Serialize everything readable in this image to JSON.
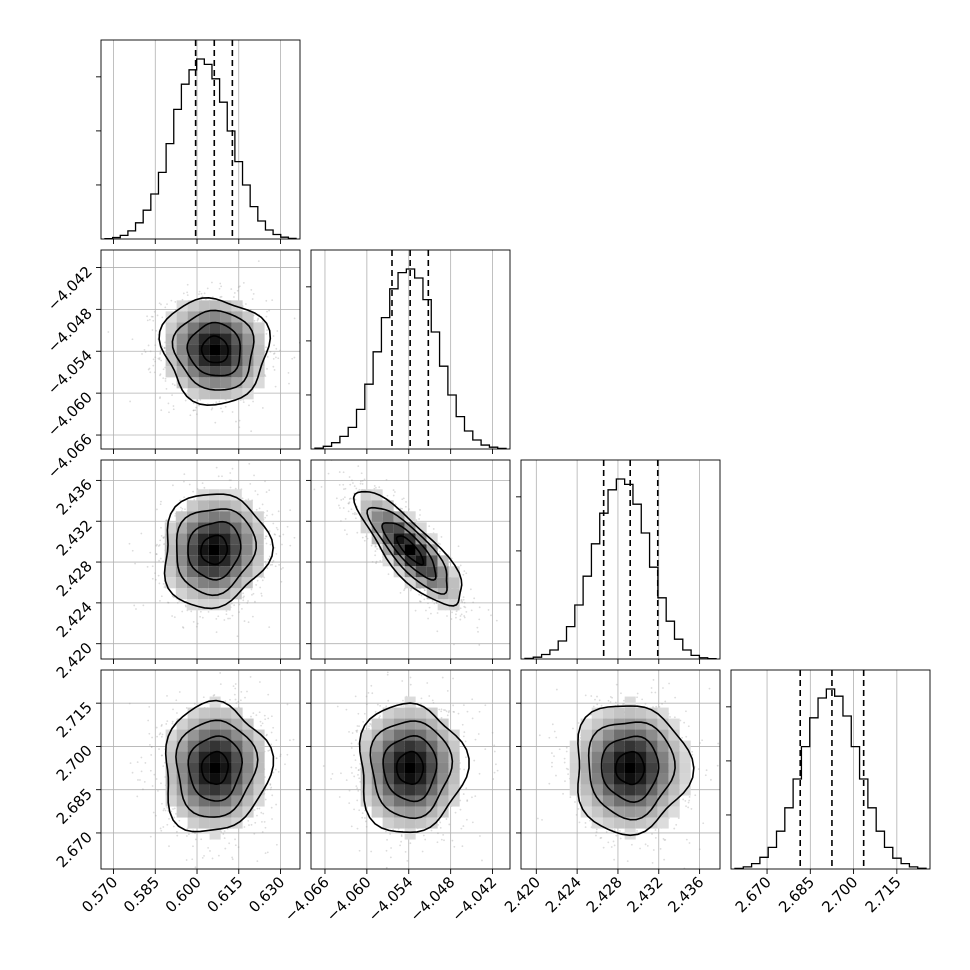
{
  "chart_data": {
    "type": "corner",
    "grid": true,
    "n_params": 4,
    "params": [
      {
        "range": [
          0.5655,
          0.637
        ],
        "ticks": [
          0.57,
          0.585,
          0.6,
          0.615,
          0.63
        ],
        "tick_labels": [
          "0.570",
          "0.585",
          "0.600",
          "0.615",
          "0.630"
        ],
        "quantiles": [
          0.5995,
          0.6062,
          0.6127
        ],
        "hist": [
          0.2,
          0.8,
          2,
          4.5,
          9,
          16,
          25,
          37,
          53,
          72,
          86,
          94,
          100,
          97,
          89,
          76,
          60,
          43,
          30,
          18,
          10,
          5,
          2.5,
          1,
          0.3
        ]
      },
      {
        "range": [
          -4.068,
          -4.0395
        ],
        "ticks": [
          -4.066,
          -4.06,
          -4.054,
          -4.048,
          -4.042
        ],
        "tick_labels": [
          "−4.066",
          "−4.060",
          "−4.054",
          "−4.048",
          "−4.042"
        ],
        "quantiles": [
          -4.0564,
          -4.0538,
          -4.0512
        ],
        "hist": [
          0.5,
          1.5,
          3.5,
          7,
          12,
          22,
          36,
          54,
          73,
          89,
          98,
          100,
          95,
          83,
          65,
          46,
          30,
          18,
          10,
          5,
          2.2,
          1,
          0.3
        ]
      },
      {
        "range": [
          2.4185,
          2.438
        ],
        "ticks": [
          2.42,
          2.424,
          2.428,
          2.432,
          2.436
        ],
        "tick_labels": [
          "2.420",
          "2.424",
          "2.428",
          "2.432",
          "2.436"
        ],
        "quantiles": [
          2.4266,
          2.4292,
          2.4319
        ],
        "hist": [
          0.3,
          1,
          2.5,
          5,
          10,
          18,
          30,
          46,
          64,
          81,
          94,
          100,
          97,
          86,
          70,
          51,
          34,
          21,
          11,
          5,
          2,
          0.7,
          0.2
        ]
      },
      {
        "range": [
          2.6575,
          2.7265
        ],
        "ticks": [
          2.67,
          2.685,
          2.7,
          2.715
        ],
        "tick_labels": [
          "2.670",
          "2.685",
          "2.700",
          "2.715"
        ],
        "quantiles": [
          2.6815,
          2.6925,
          2.7035
        ],
        "hist": [
          0.3,
          1.2,
          3,
          6.5,
          12,
          21,
          34,
          50,
          68,
          84,
          95,
          100,
          96,
          85,
          68,
          50,
          34,
          21,
          12,
          6,
          3,
          1.2,
          0.4
        ]
      }
    ],
    "pairs": [
      {
        "row": 1,
        "col": 0,
        "mean": [
          0.6065,
          -4.0538
        ],
        "sd": [
          0.0095,
          0.0038
        ],
        "rho": -0.05
      },
      {
        "row": 2,
        "col": 0,
        "mean": [
          0.6062,
          2.4292
        ],
        "sd": [
          0.0095,
          0.0028
        ],
        "rho": 0.08
      },
      {
        "row": 2,
        "col": 1,
        "mean": [
          -4.0538,
          2.4292
        ],
        "sd": [
          0.0038,
          0.0028
        ],
        "rho": -0.82
      },
      {
        "row": 3,
        "col": 0,
        "mean": [
          0.6065,
          2.6925
        ],
        "sd": [
          0.0095,
          0.0112
        ],
        "rho": 0.05
      },
      {
        "row": 3,
        "col": 1,
        "mean": [
          -4.0538,
          2.6925
        ],
        "sd": [
          0.0038,
          0.0112
        ],
        "rho": 0.0
      },
      {
        "row": 3,
        "col": 2,
        "mean": [
          2.4292,
          2.6925
        ],
        "sd": [
          0.0028,
          0.0112
        ],
        "rho": 0.0
      }
    ]
  }
}
